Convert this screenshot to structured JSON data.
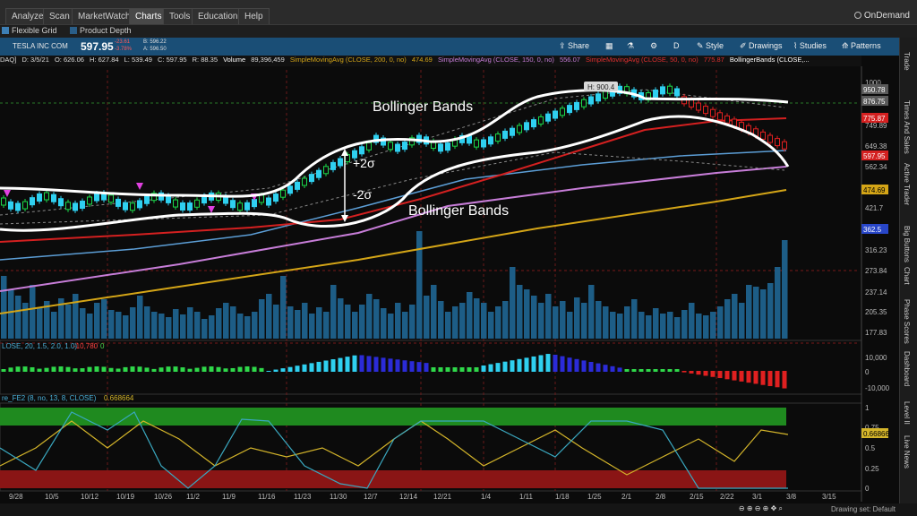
{
  "menu": {
    "items": [
      {
        "label": "Analyze",
        "x": 6
      },
      {
        "label": "Scan",
        "x": 48
      },
      {
        "label": "MarketWatch",
        "x": 80
      },
      {
        "label": "Charts",
        "x": 144
      },
      {
        "label": "Tools",
        "x": 182
      },
      {
        "label": "Education",
        "x": 214
      },
      {
        "label": "Help",
        "x": 266
      }
    ],
    "active": "Charts",
    "ondemand": "OnDemand"
  },
  "subbar": {
    "flexible_grid": "Flexible Grid",
    "product_depth": "Product Depth"
  },
  "symbol": {
    "name": "TESLA INC COM",
    "price": "597.95",
    "change": "-23.61",
    "change_pct": "-3.78%",
    "bid": "B: 596.22",
    "ask": "A: 596.50"
  },
  "toolbar": {
    "share": "Share",
    "d": "D",
    "style": "Style",
    "drawings": "Drawings",
    "studies": "Studies",
    "patterns": "Patterns"
  },
  "infobar": {
    "exchange": "DAQ]",
    "date": "D: 3/5/21",
    "open": "O: 626.06",
    "high": "H: 627.84",
    "low": "L: 539.49",
    "close": "C: 597.95",
    "range": "R: 88.35",
    "volume_label": "Volume",
    "volume": "89,396,459",
    "sma200_label": "SimpleMovingAvg (CLOSE, 200, 0, no)",
    "sma200": "474.69",
    "sma150_label": "SimpleMovingAvg (CLOSE, 150, 0, no)",
    "sma150": "556.07",
    "sma50_label": "SimpleMovingAvg (CLOSE, 50, 0, no)",
    "sma50": "775.87",
    "bb_label": "BollingerBands (CLOSE,..."
  },
  "price_axis": {
    "ticks": [
      "1000",
      "876.75",
      "749.89",
      "649.38",
      "562.34",
      "421.7",
      "316.23",
      "273.84",
      "237.14",
      "205.35",
      "177.83"
    ],
    "tags": [
      {
        "value": "950.78",
        "color": "#5a5a5a",
        "text_color": "#ffffff"
      },
      {
        "value": "876.75",
        "color": "#5a5a5a",
        "text_color": "#ffffff"
      },
      {
        "value": "775.87",
        "color": "#d42020",
        "text_color": "#ffffff"
      },
      {
        "value": "597.95",
        "color": "#d42020",
        "text_color": "#ffffff"
      },
      {
        "value": "474.69",
        "color": "#d4a517",
        "text_color": "#000000"
      },
      {
        "value": "362.5",
        "color": "#2846c8",
        "text_color": "#ffffff"
      }
    ],
    "high_marker": "H: 900.4"
  },
  "annotations": {
    "bb_top": "Bollinger Bands",
    "bb_bottom": "Bollinger Bands",
    "plus2": "+2σ",
    "minus2": "-2σ"
  },
  "macd": {
    "label": "LOSE, 20, 1.5, 2.0, 1.0)",
    "value1": "-10,780",
    "value2": "0",
    "ticks": [
      "10,000",
      "0",
      "-10,000"
    ]
  },
  "osc": {
    "label": "re_FE2 (8, no, 13, 8, CLOSE)",
    "value": "0.668664",
    "ticks": [
      "1",
      "0.75",
      "0.5",
      "0.25",
      "0"
    ],
    "tag": "0.66866"
  },
  "dates": [
    "9/28",
    "10/5",
    "10/12",
    "10/19",
    "10/26",
    "11/2",
    "11/9",
    "11/16",
    "11/23",
    "11/30",
    "12/7",
    "12/14",
    "12/21",
    "1/4",
    "1/11",
    "1/18",
    "1/25",
    "2/1",
    "2/8",
    "2/15",
    "2/22",
    "3/1",
    "3/8",
    "3/15"
  ],
  "right_nav": [
    "Trade",
    "Times And Sales",
    "Active Trader",
    "Big Buttons",
    "Chart",
    "Phase Scores",
    "Dashboard",
    "Level II",
    "Live News"
  ],
  "status": {
    "drawing_set": "Drawing set: Default"
  },
  "colors": {
    "sma200": "#d4a517",
    "sma150": "#c77dd8",
    "sma50": "#d42020",
    "ema_blue": "#5c9ed6",
    "volume": "#1d5d86",
    "bullish": "#2fd0f0",
    "bearish": "#2b2bd8",
    "green_zone": "#1f8a1f",
    "red_zone": "#8a1515",
    "osc_yellow": "#d4b52a",
    "osc_cyan": "#3aa8c0"
  }
}
